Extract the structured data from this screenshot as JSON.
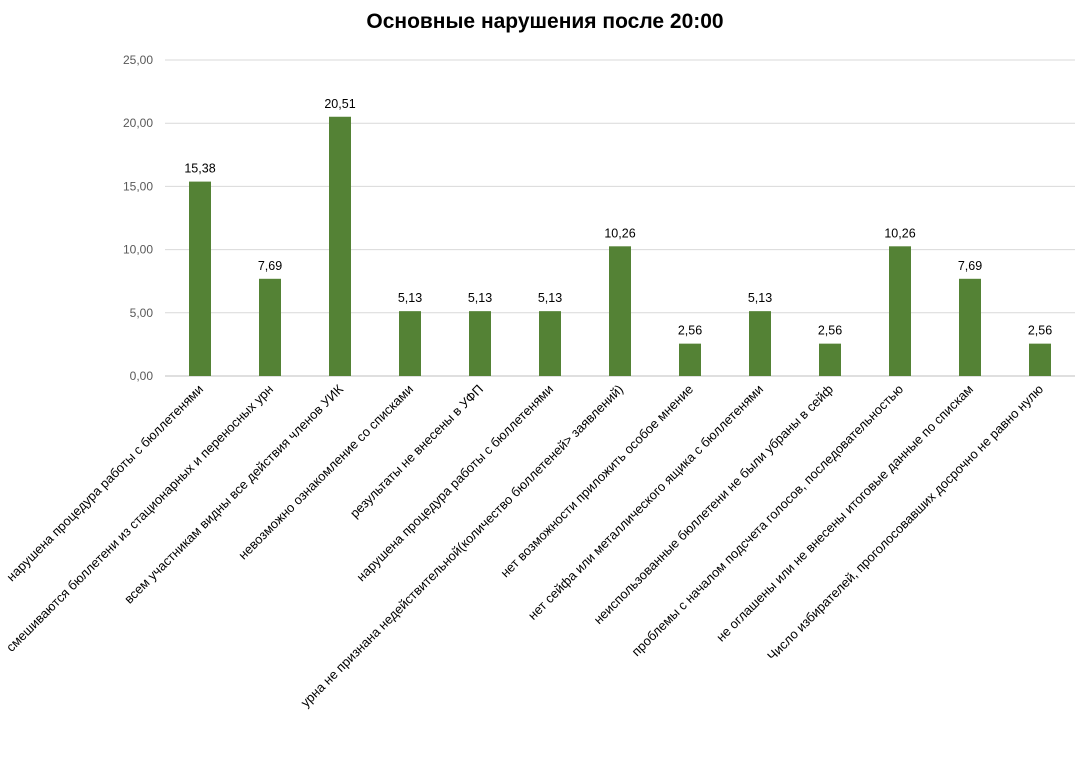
{
  "chart_data": {
    "type": "bar",
    "title": "Основные нарушения после 20:00",
    "xlabel": "",
    "ylabel": "",
    "ylim": [
      0,
      25
    ],
    "yticks": [
      "0,00",
      "5,00",
      "10,00",
      "15,00",
      "20,00",
      "25,00"
    ],
    "grid": true,
    "legend": "none",
    "bar_color": "#548235",
    "categories": [
      "нарушена процедура работы с бюллетенями",
      "смешиваются бюллетени из стационарных и переносных урн",
      "всем участникам  видны все действия членов УИК",
      "невозможно ознакомление со списками",
      "результаты не внесены в УФП",
      "нарушена процедура работы с бюллетенями",
      "урна не признана недействительной(количество бюллетеней> заявлений)",
      "нет возможности приложить особое мнение",
      "нет сейфа или металлического ящика с бюллетенями",
      "неиспользованные бюллетени не были убраны в сейф",
      "проблемы с началом подсчета голосов, последовательностью",
      "не оглашены или не внесены итоговые данные по спискам",
      "Число избирателей, проголосовавших досрочно не равно нулю"
    ],
    "values": [
      15.38,
      7.69,
      20.51,
      5.13,
      5.13,
      5.13,
      10.26,
      2.56,
      5.13,
      2.56,
      10.26,
      7.69,
      2.56
    ],
    "data_labels": [
      "15,38",
      "7,69",
      "20,51",
      "5,13",
      "5,13",
      "5,13",
      "10,26",
      "2,56",
      "5,13",
      "2,56",
      "10,26",
      "7,69",
      "2,56"
    ]
  }
}
